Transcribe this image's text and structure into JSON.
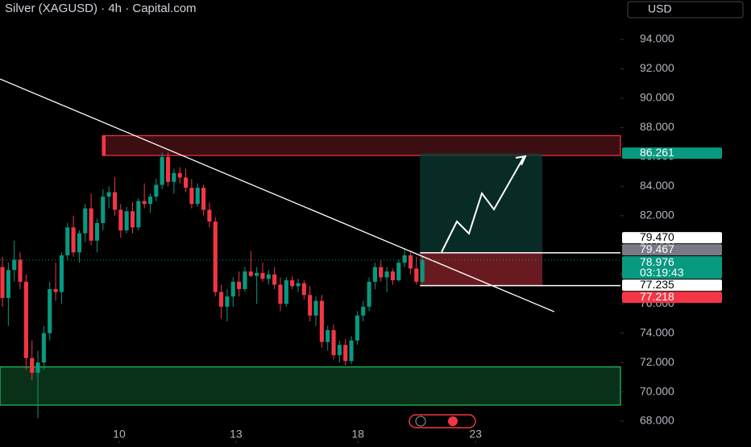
{
  "chart_data": {
    "type": "candlestick",
    "title": "Silver (XAGUSD) · 4h · Capital.com",
    "currency": "USD",
    "up_color": "#089981",
    "down_color": "#f23645",
    "ylim": [
      66.52,
      96.69
    ],
    "yticks": [
      {
        "value": 68,
        "label": "68.000"
      },
      {
        "value": 70,
        "label": "70.000"
      },
      {
        "value": 72,
        "label": "72.000"
      },
      {
        "value": 74,
        "label": "74.000"
      },
      {
        "value": 76,
        "label": "76.000"
      },
      {
        "value": 78,
        "label": "78.000"
      },
      {
        "value": 80,
        "label": "80.000"
      },
      {
        "value": 82,
        "label": "82.000"
      },
      {
        "value": 84,
        "label": "84.000"
      },
      {
        "value": 86,
        "label": "86.000"
      },
      {
        "value": 88,
        "label": "88.000"
      },
      {
        "value": 90,
        "label": "90.000"
      },
      {
        "value": 92,
        "label": "92.000"
      },
      {
        "value": 94,
        "label": "94.000"
      }
    ],
    "xlim": [
      -0.41,
      104.5
    ],
    "xticks": [
      {
        "value": 19.75,
        "label": "10"
      },
      {
        "value": 39.5,
        "label": "13"
      },
      {
        "value": 60.1,
        "label": "18"
      },
      {
        "value": 80,
        "label": "23"
      }
    ],
    "candles": [
      [
        78.5,
        79.2,
        75.8,
        76.4
      ],
      [
        76.4,
        78.8,
        74.5,
        78.3
      ],
      [
        78.3,
        80.3,
        77.5,
        79.0
      ],
      [
        79.0,
        79.5,
        77.0,
        77.5
      ],
      [
        77.5,
        78.0,
        71.5,
        72.3
      ],
      [
        72.3,
        73.5,
        70.8,
        71.3
      ],
      [
        71.3,
        72.8,
        68.2,
        72.0
      ],
      [
        72.0,
        74.5,
        71.5,
        74.0
      ],
      [
        74.0,
        77.5,
        73.5,
        77.0
      ],
      [
        77.0,
        78.8,
        76.2,
        76.8
      ],
      [
        76.8,
        79.5,
        76.0,
        79.3
      ],
      [
        79.3,
        81.5,
        79.0,
        81.2
      ],
      [
        81.2,
        82.0,
        79.2,
        79.5
      ],
      [
        79.5,
        81.0,
        78.8,
        80.8
      ],
      [
        80.8,
        82.8,
        80.2,
        82.5
      ],
      [
        82.5,
        83.5,
        80.0,
        80.3
      ],
      [
        80.3,
        81.8,
        79.5,
        81.5
      ],
      [
        81.5,
        83.8,
        81.0,
        83.3
      ],
      [
        83.3,
        84.0,
        82.5,
        83.6
      ],
      [
        83.6,
        84.6,
        82.0,
        82.4
      ],
      [
        82.4,
        82.8,
        80.5,
        81.0
      ],
      [
        81.0,
        82.6,
        80.8,
        82.3
      ],
      [
        82.3,
        82.9,
        80.8,
        81.2
      ],
      [
        81.2,
        83.2,
        81.0,
        83.0
      ],
      [
        83.0,
        84.2,
        82.5,
        82.8
      ],
      [
        82.8,
        83.5,
        82.2,
        83.3
      ],
      [
        83.3,
        84.5,
        83.0,
        84.1
      ],
      [
        84.1,
        86.3,
        83.8,
        86.0
      ],
      [
        86.0,
        86.3,
        84.0,
        84.3
      ],
      [
        84.3,
        85.2,
        83.5,
        84.9
      ],
      [
        84.9,
        85.3,
        84.2,
        84.6
      ],
      [
        84.6,
        85.2,
        83.6,
        83.9
      ],
      [
        83.9,
        84.5,
        82.5,
        82.8
      ],
      [
        82.8,
        84.2,
        82.6,
        83.9
      ],
      [
        83.9,
        84.1,
        82.0,
        82.4
      ],
      [
        82.4,
        82.9,
        81.2,
        81.6
      ],
      [
        81.6,
        81.9,
        76.5,
        76.8
      ],
      [
        76.8,
        77.3,
        75.0,
        75.8
      ],
      [
        75.8,
        77.0,
        74.8,
        76.5
      ],
      [
        76.5,
        77.8,
        75.8,
        77.5
      ],
      [
        77.5,
        78.2,
        76.5,
        77.0
      ],
      [
        77.0,
        78.5,
        76.8,
        78.2
      ],
      [
        78.2,
        79.6,
        77.8,
        77.9
      ],
      [
        77.9,
        78.5,
        76.0,
        78.1
      ],
      [
        78.1,
        78.8,
        77.5,
        77.7
      ],
      [
        77.7,
        78.3,
        77.3,
        78.0
      ],
      [
        78.0,
        78.5,
        77.0,
        77.3
      ],
      [
        77.3,
        77.8,
        75.5,
        76.0
      ],
      [
        76.0,
        77.8,
        75.8,
        77.6
      ],
      [
        77.6,
        77.9,
        77.0,
        77.2
      ],
      [
        77.2,
        77.7,
        76.8,
        77.4
      ],
      [
        77.4,
        77.6,
        76.3,
        76.6
      ],
      [
        76.6,
        77.2,
        74.8,
        75.2
      ],
      [
        75.2,
        76.5,
        74.5,
        76.2
      ],
      [
        76.2,
        76.6,
        73.0,
        73.4
      ],
      [
        73.4,
        74.5,
        72.8,
        74.2
      ],
      [
        74.2,
        74.6,
        72.2,
        72.5
      ],
      [
        72.5,
        73.5,
        72.0,
        73.2
      ],
      [
        73.2,
        73.6,
        71.8,
        72.1
      ],
      [
        72.1,
        73.8,
        71.9,
        73.5
      ],
      [
        73.5,
        75.5,
        73.2,
        75.2
      ],
      [
        75.2,
        76.2,
        74.8,
        75.8
      ],
      [
        75.8,
        77.8,
        75.5,
        77.5
      ],
      [
        77.5,
        78.8,
        77.0,
        78.5
      ],
      [
        78.5,
        79.0,
        77.5,
        77.8
      ],
      [
        77.8,
        78.5,
        76.8,
        78.2
      ],
      [
        78.2,
        78.4,
        77.3,
        77.6
      ],
      [
        77.6,
        79.0,
        77.5,
        78.8
      ],
      [
        78.8,
        79.8,
        78.5,
        79.3
      ],
      [
        79.3,
        79.5,
        78.0,
        78.4
      ],
      [
        78.4,
        79.2,
        77.3,
        77.5
      ],
      [
        77.5,
        79.2,
        77.4,
        78.976
      ]
    ],
    "zones": [
      {
        "from": 86.1,
        "to": 87.45,
        "start": 16.9,
        "color": "#f23645"
      },
      {
        "from": 69.1,
        "to": 71.7,
        "start": -0.41,
        "color": "#22c55e"
      }
    ],
    "trendline": {
      "x": [
        -0.41,
        93.3
      ],
      "y": [
        91.31,
        75.46
      ],
      "color": "#ffffff"
    },
    "position": {
      "start": 70.6,
      "end": 91.3,
      "target": 86.261,
      "entry": 79.47,
      "stop": 77.235
    },
    "price_labels": [
      {
        "value": 86.261,
        "label": "86.261",
        "color": "#089981",
        "text_color": "#ffffff"
      },
      {
        "value": 79.47,
        "label": "79.470",
        "color": "#ffffff",
        "text_color": "#000000"
      },
      {
        "value": 79.467,
        "label": "79.467",
        "color": "#787b86",
        "text_color": "#ffffff"
      },
      {
        "value": 78.976,
        "label": "78.976",
        "color": "#089981",
        "text_color": "#ffffff",
        "countdown": "03:19:43"
      },
      {
        "value": 77.235,
        "label": "77.235",
        "color": "#ffffff",
        "text_color": "#000000"
      },
      {
        "value": 77.218,
        "label": "77.218",
        "color": "#f23645",
        "text_color": "#ffffff"
      }
    ]
  }
}
